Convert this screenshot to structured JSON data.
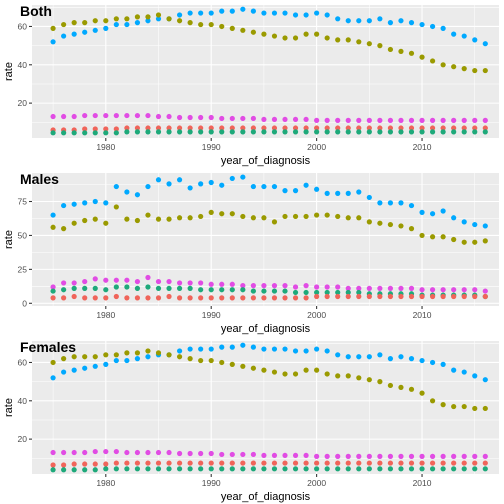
{
  "chart_data": [
    {
      "type": "scatter",
      "title": "Both",
      "xlabel": "year_of_diagnosis",
      "ylabel": "rate",
      "xlim": [
        1973,
        2017.3
      ],
      "ylim": [
        1.8,
        71.2
      ],
      "xticks": [
        1980,
        1990,
        2000,
        2010
      ],
      "yticks": [
        20,
        40,
        60
      ],
      "grid": true,
      "legend": "none",
      "x": [
        1975,
        1976,
        1977,
        1978,
        1979,
        1980,
        1981,
        1982,
        1983,
        1984,
        1985,
        1986,
        1987,
        1988,
        1989,
        1990,
        1991,
        1992,
        1993,
        1994,
        1995,
        1996,
        1997,
        1998,
        1999,
        2000,
        2001,
        2002,
        2003,
        2004,
        2005,
        2006,
        2007,
        2008,
        2009,
        2010,
        2011,
        2012,
        2013,
        2014,
        2015,
        2016
      ],
      "series": [
        {
          "color": "#00a9ff",
          "values": [
            52,
            55,
            56,
            57,
            58,
            59,
            61,
            61,
            62,
            63,
            64,
            64,
            66,
            67,
            67,
            67,
            68,
            68,
            69,
            68,
            67,
            67,
            67,
            66,
            66,
            67,
            66,
            64,
            63,
            63,
            63,
            64,
            62,
            63,
            62,
            61,
            60,
            59,
            56,
            55,
            53,
            51
          ]
        },
        {
          "color": "#9a9a00",
          "values": [
            59,
            61,
            62,
            62,
            63,
            63,
            64,
            64,
            65,
            65,
            66,
            64,
            63,
            62,
            61,
            61,
            60,
            59,
            58,
            57,
            56,
            55,
            54,
            54,
            56,
            56,
            54,
            53,
            53,
            52,
            51,
            50,
            48,
            47,
            46,
            44,
            42,
            40,
            39,
            38,
            37,
            37
          ]
        },
        {
          "color": "#e14ce4",
          "values": [
            13,
            13,
            13,
            13.5,
            13.5,
            13.5,
            13.5,
            13.5,
            13.5,
            13.5,
            13,
            13,
            12.5,
            12.5,
            12.5,
            12.5,
            12,
            12,
            12,
            12,
            11.5,
            11.5,
            11.5,
            11.5,
            11.5,
            11,
            11,
            11,
            11,
            11,
            11,
            11,
            11,
            11,
            11,
            11,
            11,
            11,
            11,
            11,
            11,
            11
          ]
        },
        {
          "color": "#f0645a",
          "values": [
            6,
            6,
            6,
            6.5,
            6.5,
            6.5,
            6.5,
            7,
            7,
            7,
            7,
            7,
            7,
            7,
            7,
            7,
            7,
            7,
            7,
            7,
            7,
            7,
            7,
            7,
            7,
            7,
            7,
            7,
            7,
            7,
            7,
            7,
            7,
            7,
            7,
            7,
            7,
            7,
            7,
            7,
            7,
            7
          ]
        },
        {
          "color": "#1ea97a",
          "values": [
            4.5,
            4.5,
            4.5,
            4.5,
            4.5,
            4.5,
            4.5,
            5,
            5,
            5,
            5,
            5,
            5,
            5,
            5,
            5,
            5,
            5,
            5,
            5,
            5,
            5,
            5,
            5,
            5,
            5,
            5,
            5,
            5,
            5,
            5,
            5,
            5,
            5,
            5,
            5,
            5,
            5,
            5,
            5,
            5,
            5
          ]
        }
      ]
    },
    {
      "type": "scatter",
      "title": "Males",
      "xlabel": "year_of_diagnosis",
      "ylabel": "rate",
      "xlim": [
        1973,
        2017.3
      ],
      "ylim": [
        -2,
        96
      ],
      "xticks": [
        1980,
        1990,
        2000,
        2010
      ],
      "yticks": [
        0,
        25,
        50,
        75
      ],
      "grid": true,
      "legend": "none",
      "x": [
        1975,
        1976,
        1977,
        1978,
        1979,
        1980,
        1981,
        1982,
        1983,
        1984,
        1985,
        1986,
        1987,
        1988,
        1989,
        1990,
        1991,
        1992,
        1993,
        1994,
        1995,
        1996,
        1997,
        1998,
        1999,
        2000,
        2001,
        2002,
        2003,
        2004,
        2005,
        2006,
        2007,
        2008,
        2009,
        2010,
        2011,
        2012,
        2013,
        2014,
        2015,
        2016
      ],
      "series": [
        {
          "color": "#00a9ff",
          "values": [
            65,
            72,
            73,
            74,
            75,
            74,
            86,
            82,
            80,
            86,
            91,
            88,
            91,
            85,
            88,
            89,
            87,
            92,
            93,
            86,
            86,
            86,
            83,
            83,
            87,
            84,
            81,
            81,
            81,
            82,
            78,
            74,
            74,
            74,
            72,
            67,
            66,
            68,
            63,
            60,
            58,
            57
          ]
        },
        {
          "color": "#9a9a00",
          "values": [
            56,
            55,
            59,
            61,
            62,
            59,
            71,
            62,
            61,
            65,
            62,
            62,
            63,
            63,
            64,
            67,
            66,
            66,
            64,
            63,
            63,
            60,
            64,
            64,
            64,
            65,
            65,
            64,
            63,
            63,
            60,
            59,
            58,
            57,
            55,
            50,
            49,
            49,
            47,
            45,
            45,
            46
          ]
        },
        {
          "color": "#e14ce4",
          "values": [
            12,
            15,
            15,
            16,
            18,
            17,
            17,
            17,
            16,
            19,
            16,
            16,
            15,
            15,
            15,
            14,
            14,
            14,
            13,
            13,
            13,
            13,
            13,
            12,
            13,
            12,
            12,
            12,
            11,
            11,
            11,
            11,
            11,
            11,
            11,
            10,
            10,
            10,
            10,
            10,
            10,
            9
          ]
        },
        {
          "color": "#1ea97a",
          "values": [
            9,
            10,
            11,
            11,
            11,
            10,
            12,
            12,
            11,
            12,
            11,
            11,
            11,
            11,
            10,
            10,
            10,
            10,
            10,
            9,
            9,
            9,
            9,
            8,
            8,
            8,
            8,
            8,
            8,
            8,
            7,
            7,
            7,
            7,
            7,
            6,
            6,
            6,
            6,
            6,
            6,
            5
          ]
        },
        {
          "color": "#f0645a",
          "values": [
            4,
            4,
            5,
            4,
            4,
            4,
            5,
            4,
            4,
            4,
            4,
            5,
            4,
            4,
            4,
            4,
            4,
            4,
            4,
            4,
            4,
            4,
            4,
            4,
            4,
            5,
            5,
            5,
            5,
            5,
            5,
            5,
            5,
            5,
            5,
            5,
            5,
            5,
            5,
            5,
            5,
            5
          ]
        }
      ]
    },
    {
      "type": "scatter",
      "title": "Females",
      "xlabel": "year_of_diagnosis",
      "ylabel": "rate",
      "xlim": [
        1973,
        2017.3
      ],
      "ylim": [
        1.8,
        71.2
      ],
      "xticks": [
        1980,
        1990,
        2000,
        2010
      ],
      "yticks": [
        20,
        40,
        60
      ],
      "grid": true,
      "legend": "none",
      "x": [
        1975,
        1976,
        1977,
        1978,
        1979,
        1980,
        1981,
        1982,
        1983,
        1984,
        1985,
        1986,
        1987,
        1988,
        1989,
        1990,
        1991,
        1992,
        1993,
        1994,
        1995,
        1996,
        1997,
        1998,
        1999,
        2000,
        2001,
        2002,
        2003,
        2004,
        2005,
        2006,
        2007,
        2008,
        2009,
        2010,
        2011,
        2012,
        2013,
        2014,
        2015,
        2016
      ],
      "series": [
        {
          "color": "#00a9ff",
          "values": [
            52,
            55,
            56,
            57,
            58,
            59,
            61,
            61,
            62,
            63,
            64,
            64,
            66,
            67,
            67,
            67,
            68,
            68,
            69,
            68,
            67,
            67,
            67,
            66,
            66,
            67,
            66,
            64,
            63,
            63,
            63,
            64,
            62,
            63,
            62,
            61,
            60,
            59,
            56,
            55,
            53,
            51
          ]
        },
        {
          "color": "#9a9a00",
          "values": [
            60,
            62,
            63,
            63,
            63,
            64,
            64,
            65,
            65,
            66,
            65,
            64,
            63,
            62,
            61,
            61,
            60,
            59,
            58,
            57,
            56,
            55,
            54,
            54,
            56,
            56,
            54,
            53,
            53,
            52,
            51,
            50,
            48,
            47,
            46,
            44,
            40,
            38,
            37,
            37,
            36,
            36
          ]
        },
        {
          "color": "#e14ce4",
          "values": [
            13,
            13,
            13,
            13,
            13.5,
            13.5,
            13.5,
            13,
            13,
            13,
            13,
            13,
            12.5,
            12.5,
            12.5,
            12.5,
            12,
            12,
            12,
            12,
            11.5,
            11.5,
            11.5,
            11.5,
            11.5,
            11,
            11,
            11,
            11,
            11,
            11,
            11,
            11,
            11,
            11,
            11,
            11,
            11,
            11,
            11,
            11,
            11
          ]
        },
        {
          "color": "#f0645a",
          "values": [
            6.5,
            6.5,
            7,
            7,
            7,
            7,
            7.5,
            7.5,
            7.5,
            7.5,
            7.5,
            7.5,
            7.5,
            7.5,
            7.5,
            7.5,
            7.5,
            7.5,
            7.5,
            7.5,
            7.5,
            7.5,
            7.5,
            7.5,
            7.5,
            7.5,
            7.5,
            7.5,
            7.5,
            7.5,
            7.5,
            7.5,
            7.5,
            7.5,
            7.5,
            7.5,
            7.5,
            7.5,
            7.5,
            7.5,
            7.5,
            7.5
          ]
        },
        {
          "color": "#1ea97a",
          "values": [
            4,
            4,
            4,
            4,
            4,
            4.5,
            4.5,
            4.5,
            4.5,
            4.5,
            4.5,
            4.5,
            4.5,
            4.5,
            4.5,
            4.5,
            4.5,
            4.5,
            4.5,
            4.5,
            4.5,
            4.5,
            4.5,
            4.5,
            4.5,
            4.5,
            4.5,
            4.5,
            4.5,
            4.5,
            4.5,
            4.5,
            4.5,
            4.5,
            4.5,
            4.5,
            4.5,
            4.5,
            4.5,
            4.5,
            4.5,
            4.5
          ]
        }
      ]
    }
  ]
}
